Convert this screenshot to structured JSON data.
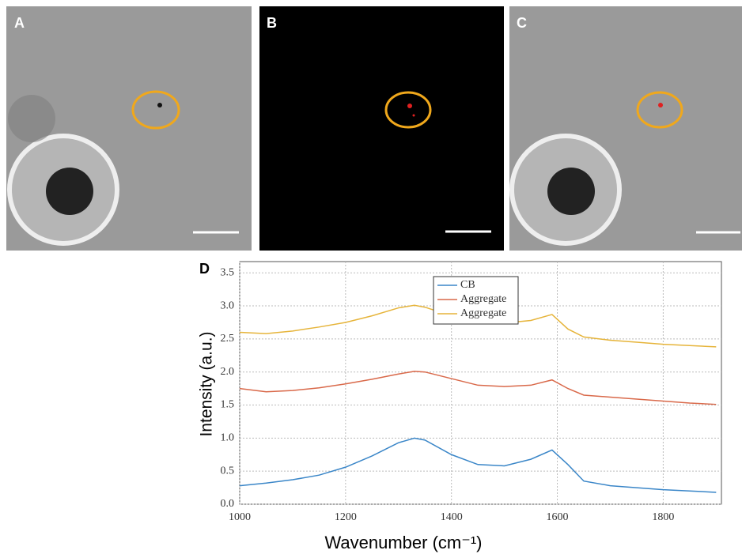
{
  "panel_labels": [
    "A",
    "B",
    "C",
    "D"
  ],
  "chart_data": {
    "type": "line",
    "xlabel": "Wavenumber (cm⁻¹)",
    "ylabel": "Intensity (a.u.)",
    "x": [
      1000,
      1050,
      1100,
      1150,
      1200,
      1250,
      1300,
      1330,
      1350,
      1400,
      1450,
      1500,
      1550,
      1590,
      1620,
      1650,
      1700,
      1750,
      1800,
      1850,
      1900
    ],
    "series": [
      {
        "name": "CB",
        "color": "#3a86c8",
        "values": [
          0.28,
          0.32,
          0.37,
          0.44,
          0.56,
          0.73,
          0.93,
          1.0,
          0.97,
          0.75,
          0.6,
          0.58,
          0.68,
          0.82,
          0.6,
          0.35,
          0.28,
          0.25,
          0.22,
          0.2,
          0.18
        ]
      },
      {
        "name": "Aggregate",
        "color": "#d9694a",
        "values": [
          1.75,
          1.7,
          1.72,
          1.76,
          1.82,
          1.89,
          1.97,
          2.01,
          2.0,
          1.9,
          1.8,
          1.78,
          1.8,
          1.88,
          1.75,
          1.65,
          1.62,
          1.59,
          1.56,
          1.53,
          1.51
        ]
      },
      {
        "name": "Aggregate",
        "color": "#e6b43a",
        "values": [
          2.6,
          2.58,
          2.62,
          2.68,
          2.75,
          2.85,
          2.97,
          3.01,
          2.98,
          2.85,
          2.76,
          2.74,
          2.78,
          2.87,
          2.65,
          2.53,
          2.48,
          2.45,
          2.42,
          2.4,
          2.38
        ]
      }
    ],
    "xlim": [
      1000,
      1910
    ],
    "ylim": [
      0,
      3.67
    ],
    "xticks": [
      1000,
      1200,
      1400,
      1600,
      1800
    ],
    "yticks": [
      {
        "value": 0,
        "label": "0.0"
      },
      0.5,
      {
        "value": 1,
        "label": "1.0"
      },
      1.5,
      {
        "value": 2,
        "label": "2.0"
      },
      2.5,
      {
        "value": 3,
        "label": "3.0"
      },
      3.5
    ],
    "grid": true,
    "legend": "upper-right"
  }
}
